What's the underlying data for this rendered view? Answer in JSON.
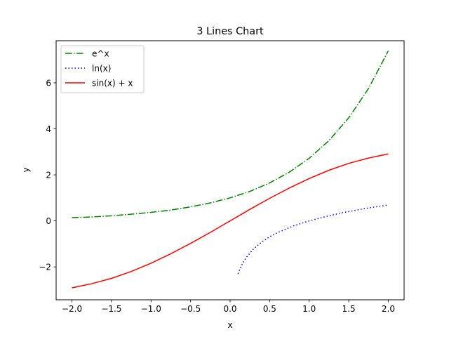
{
  "chart_data": {
    "type": "line",
    "title": "3 Lines Chart",
    "xlabel": "x",
    "ylabel": "y",
    "xlim": [
      -2.2,
      2.2
    ],
    "ylim": [
      -3.43,
      7.83
    ],
    "xticks": [
      -2.0,
      -1.5,
      -1.0,
      -0.5,
      0.0,
      0.5,
      1.0,
      1.5,
      2.0
    ],
    "xtick_labels": [
      "−2.0",
      "−1.5",
      "−1.0",
      "−0.5",
      "0.0",
      "0.5",
      "1.0",
      "1.5",
      "2.0"
    ],
    "yticks": [
      -2,
      0,
      2,
      4,
      6
    ],
    "ytick_labels": [
      "−2",
      "0",
      "2",
      "4",
      "6"
    ],
    "grid": false,
    "legend_position": "top-left",
    "series": [
      {
        "name": "e^x",
        "color": "#008000",
        "style": "dashdot",
        "x": [
          -2.0,
          -1.75,
          -1.5,
          -1.25,
          -1.0,
          -0.75,
          -0.5,
          -0.25,
          0.0,
          0.25,
          0.5,
          0.75,
          1.0,
          1.25,
          1.5,
          1.75,
          2.0
        ],
        "y": [
          0.14,
          0.17,
          0.22,
          0.29,
          0.37,
          0.47,
          0.61,
          0.78,
          1.0,
          1.28,
          1.65,
          2.12,
          2.72,
          3.49,
          4.48,
          5.75,
          7.39
        ]
      },
      {
        "name": "ln(x)",
        "color": "#0000ff",
        "style": "dotted",
        "x": [
          0.1,
          0.15,
          0.2,
          0.3,
          0.4,
          0.5,
          0.6,
          0.8,
          1.0,
          1.2,
          1.4,
          1.6,
          1.8,
          2.0
        ],
        "y": [
          -2.3,
          -1.9,
          -1.61,
          -1.2,
          -0.92,
          -0.69,
          -0.51,
          -0.22,
          0.0,
          0.18,
          0.34,
          0.47,
          0.59,
          0.69
        ]
      },
      {
        "name": "sin(x) + x",
        "color": "#ff0000",
        "style": "solid",
        "x": [
          -2.0,
          -1.75,
          -1.5,
          -1.25,
          -1.0,
          -0.75,
          -0.5,
          -0.25,
          0.0,
          0.25,
          0.5,
          0.75,
          1.0,
          1.25,
          1.5,
          1.75,
          2.0
        ],
        "y": [
          -2.91,
          -2.73,
          -2.5,
          -2.2,
          -1.84,
          -1.43,
          -0.98,
          -0.5,
          0.0,
          0.5,
          0.98,
          1.43,
          1.84,
          2.2,
          2.5,
          2.73,
          2.91
        ]
      }
    ]
  }
}
